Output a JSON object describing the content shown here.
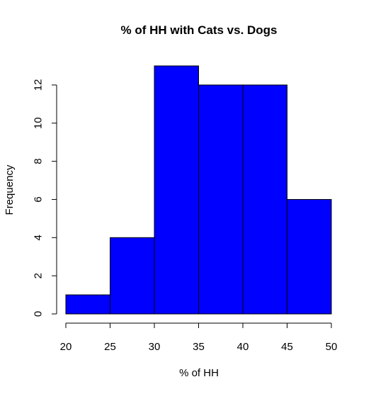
{
  "chart_data": {
    "type": "bar",
    "title": "% of HH with Cats vs. Dogs",
    "xlabel": "% of HH",
    "ylabel": "Frequency",
    "bins": [
      {
        "start": 20,
        "end": 25,
        "count": 1
      },
      {
        "start": 25,
        "end": 30,
        "count": 4
      },
      {
        "start": 30,
        "end": 35,
        "count": 13
      },
      {
        "start": 35,
        "end": 40,
        "count": 12
      },
      {
        "start": 40,
        "end": 45,
        "count": 12
      },
      {
        "start": 45,
        "end": 50,
        "count": 6
      }
    ],
    "xlim": [
      20,
      50
    ],
    "ylim": [
      0,
      13
    ],
    "xticks": [
      20,
      25,
      30,
      35,
      40,
      45,
      50
    ],
    "yticks": [
      0,
      2,
      4,
      6,
      8,
      10,
      12
    ],
    "bar_color": "#0000ff",
    "grid": false,
    "legend": "none"
  }
}
